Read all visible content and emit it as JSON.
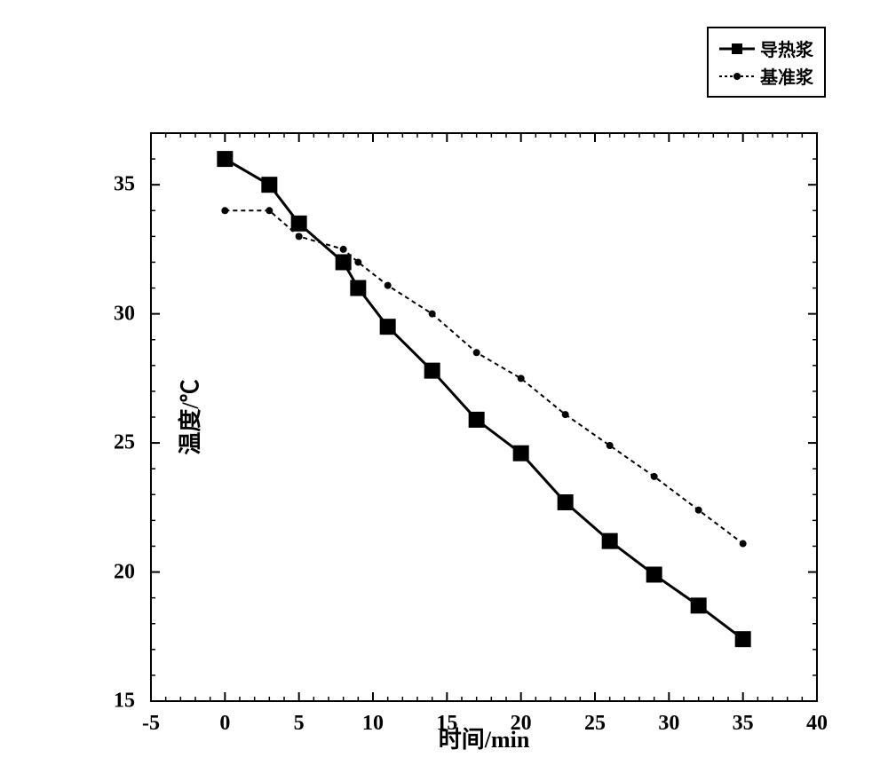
{
  "chart": {
    "type": "line",
    "background_color": "#ffffff",
    "axis_color": "#000000",
    "axis_line_width": 2,
    "xlim": [
      -5,
      40
    ],
    "ylim": [
      15,
      37
    ],
    "xtick_step": 5,
    "ytick_step": 5,
    "xticks": [
      -5,
      0,
      5,
      10,
      15,
      20,
      25,
      30,
      35,
      40
    ],
    "yticks": [
      15,
      20,
      25,
      30,
      35
    ],
    "y_minor_per_major": 5,
    "x_minor_per_major": 5,
    "xlabel": "时间/min",
    "ylabel": "温度/℃",
    "label_fontsize": 26,
    "tick_fontsize": 24,
    "series": [
      {
        "name": "导热浆",
        "marker": "square",
        "marker_size": 18,
        "color": "#000000",
        "line_style": "solid",
        "line_width": 3,
        "x": [
          0,
          3,
          5,
          8,
          9,
          11,
          14,
          17,
          20,
          23,
          26,
          29,
          32,
          35
        ],
        "y": [
          36.0,
          35.0,
          33.5,
          32.0,
          31.0,
          29.5,
          27.8,
          25.9,
          24.6,
          22.7,
          21.2,
          19.9,
          18.7,
          17.4
        ]
      },
      {
        "name": "基准浆",
        "marker": "circle",
        "marker_size": 8,
        "color": "#000000",
        "line_style": "dashed",
        "line_width": 2,
        "x": [
          0,
          3,
          5,
          8,
          9,
          11,
          14,
          17,
          20,
          23,
          26,
          29,
          32,
          35
        ],
        "y": [
          34.0,
          34.0,
          33.0,
          32.5,
          32.0,
          31.1,
          30.0,
          28.5,
          27.5,
          26.1,
          24.9,
          23.7,
          22.4,
          21.1
        ]
      }
    ],
    "legend": {
      "position": "top-right",
      "border_color": "#000000",
      "background_color": "#ffffff",
      "fontsize": 20,
      "items": [
        "导热浆",
        "基准浆"
      ]
    }
  }
}
